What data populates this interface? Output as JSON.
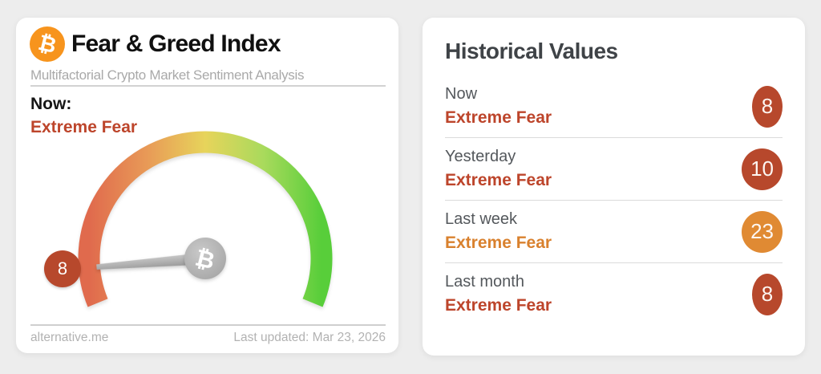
{
  "page_background": "#ededed",
  "gauge_card": {
    "title": "Fear & Greed Index",
    "subtitle": "Multifactorial Crypto Market Sentiment Analysis",
    "now_label": "Now:",
    "now_sentiment": "Extreme Fear",
    "value": 8,
    "value_min": 0,
    "value_max": 100,
    "sentiment_color": "#bd452b",
    "badge_color": "#b7482c",
    "footer_source": "alternative.me",
    "footer_updated": "Last updated: Mar 23, 2026"
  },
  "history_card": {
    "title": "Historical Values",
    "rows": [
      {
        "label": "Now",
        "sentiment": "Extreme Fear",
        "value": "8",
        "sentiment_color": "#bd452b",
        "badge_color": "#b7482c"
      },
      {
        "label": "Yesterday",
        "sentiment": "Extreme Fear",
        "value": "10",
        "sentiment_color": "#bd452b",
        "badge_color": "#b7482c"
      },
      {
        "label": "Last week",
        "sentiment": "Extreme Fear",
        "value": "23",
        "sentiment_color": "#d9812e",
        "badge_color": "#e08a33"
      },
      {
        "label": "Last month",
        "sentiment": "Extreme Fear",
        "value": "8",
        "sentiment_color": "#bd452b",
        "badge_color": "#b7482c"
      }
    ]
  },
  "icons": {
    "bitcoin_glyph": "₿"
  },
  "gauge_gradient": {
    "start": "#e06a4d",
    "q1": "#e89a57",
    "mid": "#e7d45b",
    "q3": "#a9da5c",
    "end": "#58ce3a"
  },
  "chart_data": {
    "type": "gauge",
    "title": "Fear & Greed Index",
    "value": 8,
    "min": 0,
    "max": 100,
    "label": "Extreme Fear",
    "history": [
      {
        "period": "Now",
        "value": 8,
        "label": "Extreme Fear"
      },
      {
        "period": "Yesterday",
        "value": 10,
        "label": "Extreme Fear"
      },
      {
        "period": "Last week",
        "value": 23,
        "label": "Extreme Fear"
      },
      {
        "period": "Last month",
        "value": 8,
        "label": "Extreme Fear"
      }
    ]
  }
}
